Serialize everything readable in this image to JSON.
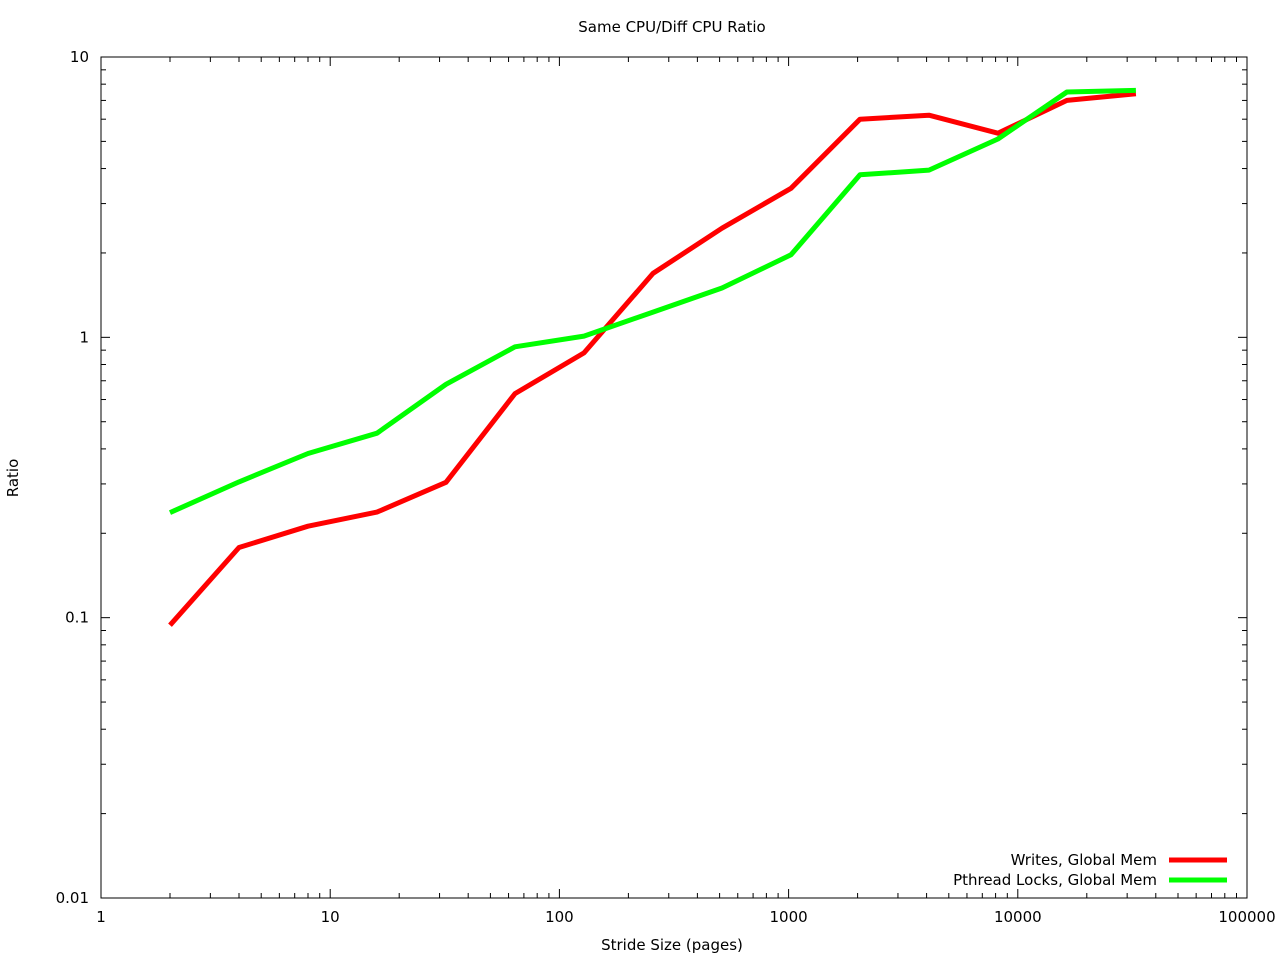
{
  "chart_data": {
    "type": "line",
    "title": "Same CPU/Diff CPU Ratio",
    "xlabel": "Stride Size (pages)",
    "ylabel": "Ratio",
    "xscale": "log",
    "yscale": "log",
    "xlim": [
      1,
      100000
    ],
    "ylim": [
      0.01,
      10
    ],
    "x_ticks": [
      {
        "value": 1,
        "label": "1"
      },
      {
        "value": 10,
        "label": "10"
      },
      {
        "value": 100,
        "label": "100"
      },
      {
        "value": 1000,
        "label": "1000"
      },
      {
        "value": 10000,
        "label": "10000"
      },
      {
        "value": 100000,
        "label": "100000"
      }
    ],
    "y_ticks": [
      {
        "value": 0.01,
        "label": "0.01"
      },
      {
        "value": 0.1,
        "label": "0.1"
      },
      {
        "value": 1,
        "label": "1"
      },
      {
        "value": 10,
        "label": "10"
      }
    ],
    "grid": false,
    "legend_position": "bottom-right",
    "x": [
      2,
      4,
      8,
      16,
      32,
      64,
      128,
      256,
      512,
      1024,
      2048,
      4096,
      8192,
      16384,
      32768
    ],
    "series": [
      {
        "name": "Writes,  Global Mem",
        "color": "#ff0000",
        "values": [
          0.094,
          0.178,
          0.212,
          0.238,
          0.304,
          0.63,
          0.88,
          1.69,
          2.45,
          3.4,
          6.0,
          6.2,
          5.35,
          7.0,
          7.4
        ]
      },
      {
        "name": "Pthread Locks,  Global Mem",
        "color": "#00ff00",
        "values": [
          0.237,
          0.305,
          0.385,
          0.455,
          0.68,
          0.925,
          1.01,
          1.23,
          1.5,
          1.97,
          3.8,
          3.95,
          5.1,
          7.5,
          7.6
        ]
      }
    ]
  }
}
